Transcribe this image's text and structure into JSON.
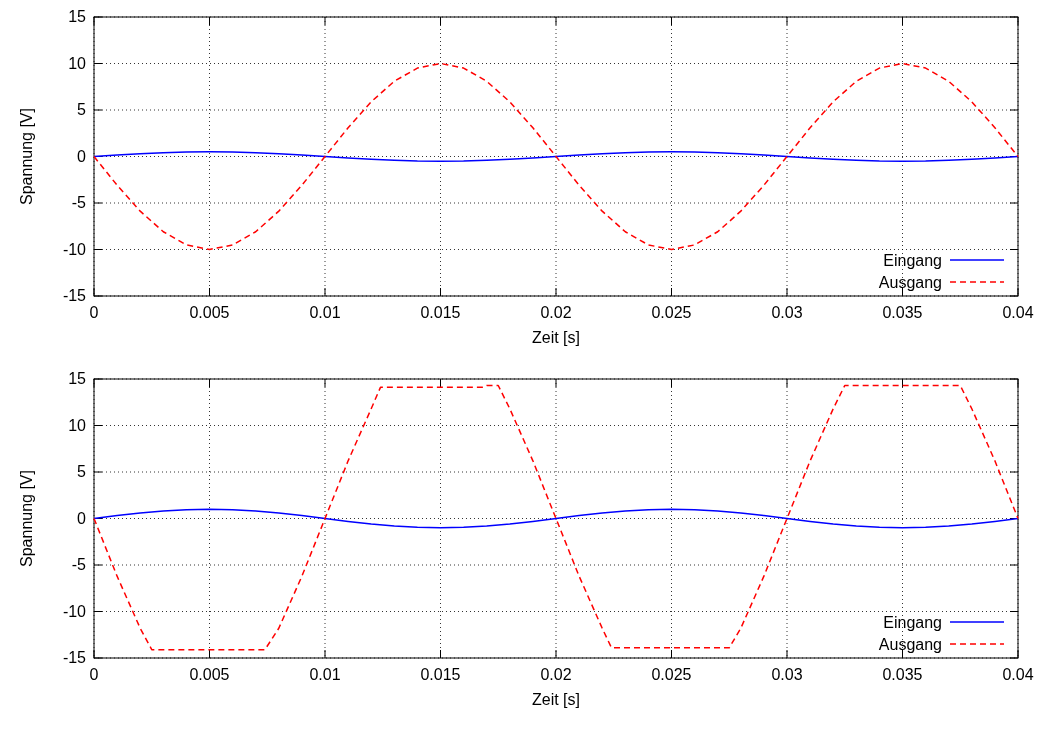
{
  "chart_data": [
    {
      "type": "line",
      "xlabel": "Zeit [s]",
      "ylabel": "Spannung [V]",
      "xlim": [
        0,
        0.04
      ],
      "ylim": [
        -15,
        15
      ],
      "xticks": [
        0,
        0.005,
        0.01,
        0.015,
        0.02,
        0.025,
        0.03,
        0.035,
        0.04
      ],
      "yticks": [
        -15,
        -10,
        -5,
        0,
        5,
        10,
        15
      ],
      "grid": true,
      "legend": "bottom right",
      "x": [
        0,
        0.001,
        0.002,
        0.003,
        0.004,
        0.005,
        0.006,
        0.007,
        0.008,
        0.009,
        0.01,
        0.011,
        0.012,
        0.013,
        0.014,
        0.015,
        0.016,
        0.017,
        0.018,
        0.019,
        0.02,
        0.021,
        0.022,
        0.023,
        0.024,
        0.025,
        0.026,
        0.027,
        0.028,
        0.029,
        0.03,
        0.031,
        0.032,
        0.033,
        0.034,
        0.035,
        0.036,
        0.037,
        0.038,
        0.039,
        0.04
      ],
      "series": [
        {
          "name": "Eingang",
          "color": "#0000ff",
          "line_style": "solid",
          "values": [
            0,
            0.15,
            0.29,
            0.4,
            0.48,
            0.5,
            0.48,
            0.4,
            0.29,
            0.15,
            0,
            -0.15,
            -0.29,
            -0.4,
            -0.48,
            -0.5,
            -0.48,
            -0.4,
            -0.29,
            -0.15,
            0,
            0.15,
            0.29,
            0.4,
            0.48,
            0.5,
            0.48,
            0.4,
            0.29,
            0.15,
            0,
            -0.15,
            -0.29,
            -0.4,
            -0.48,
            -0.5,
            -0.48,
            -0.4,
            -0.29,
            -0.15,
            0
          ]
        },
        {
          "name": "Ausgang",
          "color": "#ff0000",
          "line_style": "dashed",
          "values": [
            0,
            -3.09,
            -5.88,
            -8.09,
            -9.51,
            -10,
            -9.51,
            -8.09,
            -5.88,
            -3.09,
            0,
            3.09,
            5.88,
            8.09,
            9.51,
            10,
            9.51,
            8.09,
            5.88,
            3.09,
            0,
            -3.09,
            -5.88,
            -8.09,
            -9.51,
            -10,
            -9.51,
            -8.09,
            -5.88,
            -3.09,
            0,
            3.09,
            5.88,
            8.09,
            9.51,
            10,
            9.51,
            8.09,
            5.88,
            3.09,
            0
          ]
        }
      ]
    },
    {
      "type": "line",
      "xlabel": "Zeit [s]",
      "ylabel": "Spannung [V]",
      "xlim": [
        0,
        0.04
      ],
      "ylim": [
        -15,
        15
      ],
      "xticks": [
        0,
        0.005,
        0.01,
        0.015,
        0.02,
        0.025,
        0.03,
        0.035,
        0.04
      ],
      "yticks": [
        -15,
        -10,
        -5,
        0,
        5,
        10,
        15
      ],
      "grid": true,
      "legend": "bottom right",
      "x": [
        0,
        0.001,
        0.002,
        0.003,
        0.004,
        0.005,
        0.006,
        0.007,
        0.008,
        0.009,
        0.01,
        0.011,
        0.012,
        0.013,
        0.014,
        0.015,
        0.016,
        0.017,
        0.018,
        0.019,
        0.02,
        0.021,
        0.022,
        0.023,
        0.024,
        0.025,
        0.026,
        0.027,
        0.028,
        0.029,
        0.03,
        0.031,
        0.032,
        0.033,
        0.034,
        0.035,
        0.036,
        0.037,
        0.038,
        0.039,
        0.04
      ],
      "series": [
        {
          "name": "Eingang",
          "color": "#0000ff",
          "line_style": "solid",
          "values": [
            0,
            0.31,
            0.59,
            0.81,
            0.95,
            1,
            0.95,
            0.81,
            0.59,
            0.31,
            0,
            -0.31,
            -0.59,
            -0.81,
            -0.95,
            -1,
            -0.95,
            -0.81,
            -0.59,
            -0.31,
            0,
            0.31,
            0.59,
            0.81,
            0.95,
            1,
            0.95,
            0.81,
            0.59,
            0.31,
            0,
            -0.31,
            -0.59,
            -0.81,
            -0.95,
            -1,
            -0.95,
            -0.81,
            -0.59,
            -0.31,
            0
          ]
        },
        {
          "name": "Ausgang",
          "color": "#ff0000",
          "line_style": "dashed",
          "x": [
            0,
            0.001,
            0.002,
            0.0025,
            0.0074,
            0.008,
            0.009,
            0.01,
            0.011,
            0.012,
            0.0124,
            0.0168,
            0.017,
            0.0175,
            0.018,
            0.019,
            0.02,
            0.021,
            0.022,
            0.0224,
            0.0275,
            0.028,
            0.029,
            0.03,
            0.031,
            0.032,
            0.0325,
            0.0375,
            0.038,
            0.039,
            0.04
          ],
          "values": [
            0,
            -6.2,
            -11.8,
            -14.1,
            -14.1,
            -11.8,
            -6.2,
            0,
            6.2,
            11.8,
            14.1,
            14.1,
            14.3,
            14.3,
            11.8,
            6.2,
            0,
            -6.2,
            -11.8,
            -13.9,
            -13.9,
            -11.8,
            -6.2,
            0,
            6.2,
            11.8,
            14.3,
            14.3,
            11.8,
            6.2,
            0
          ]
        }
      ]
    }
  ]
}
